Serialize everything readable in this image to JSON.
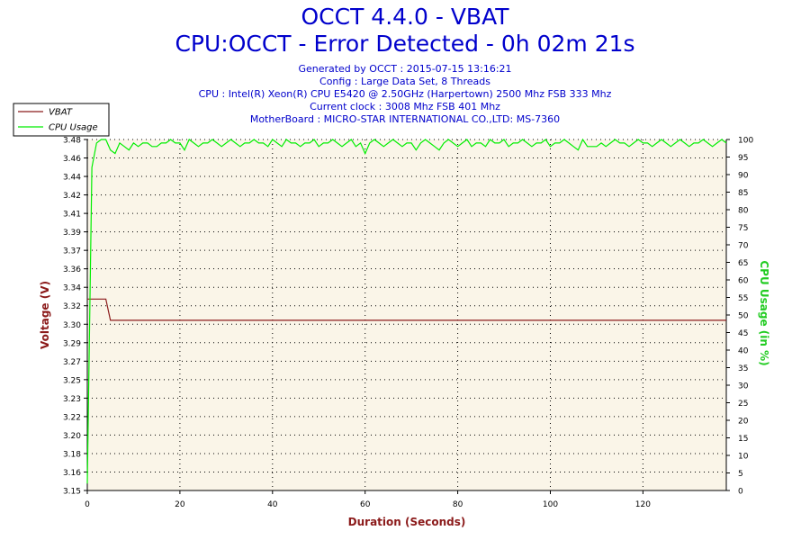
{
  "header": {
    "title": "OCCT 4.4.0 - VBAT",
    "subtitle": "CPU:OCCT - Error Detected - 0h 02m 21s",
    "info_lines": [
      "Generated by OCCT : 2015-07-15 13:16:21",
      "Config : Large Data Set, 8 Threads",
      "CPU : Intel(R) Xeon(R) CPU E5420 @ 2.50GHz (Harpertown) 2500 Mhz FSB 333 Mhz",
      "Current clock : 3008 Mhz FSB 401 Mhz",
      "MotherBoard : MICRO-STAR INTERNATIONAL CO.,LTD: MS-7360"
    ]
  },
  "chart_data": {
    "type": "line",
    "title": "OCCT 4.4.0 - VBAT",
    "xlabel": "Duration (Seconds)",
    "ylabel_left": "Voltage (V)",
    "ylabel_right": "CPU Usage (in %)",
    "xlim": [
      0,
      138
    ],
    "ylim_left": [
      3.15,
      3.48
    ],
    "ylim_right": [
      0,
      100
    ],
    "x_ticks": [
      0,
      20,
      40,
      60,
      80,
      100,
      120
    ],
    "y_left_ticks": [
      "3.15",
      "3.16",
      "3.18",
      "3.20",
      "3.22",
      "3.23",
      "3.25",
      "3.27",
      "3.29",
      "3.30",
      "3.32",
      "3.34",
      "3.36",
      "3.37",
      "3.39",
      "3.41",
      "3.42",
      "3.44",
      "3.46",
      "3.48"
    ],
    "y_right_ticks": [
      0,
      5,
      10,
      15,
      20,
      25,
      30,
      35,
      40,
      45,
      50,
      55,
      60,
      65,
      70,
      75,
      80,
      85,
      90,
      95,
      100
    ],
    "grid": true,
    "legend_position": "top-left",
    "colors": {
      "plot_bg": "#faf5e8",
      "vbat": "#8b1a1a",
      "cpu": "#00ee00",
      "axis_left_label": "#8b1a1a",
      "axis_right_label": "#22cc22",
      "x_label": "#8b1a1a"
    },
    "series": [
      {
        "name": "VBAT",
        "axis": "left",
        "x": [
          0,
          4,
          5,
          138
        ],
        "values": [
          3.33,
          3.33,
          3.31,
          3.31
        ]
      },
      {
        "name": "CPU Usage",
        "axis": "right",
        "x": [
          0,
          1,
          2,
          3,
          4,
          5,
          6,
          7,
          8,
          9,
          10,
          11,
          12,
          13,
          14,
          15,
          16,
          17,
          18,
          19,
          20,
          21,
          22,
          23,
          24,
          25,
          26,
          27,
          28,
          29,
          30,
          31,
          32,
          33,
          34,
          35,
          36,
          37,
          38,
          39,
          40,
          41,
          42,
          43,
          44,
          45,
          46,
          47,
          48,
          49,
          50,
          51,
          52,
          53,
          54,
          55,
          56,
          57,
          58,
          59,
          60,
          61,
          62,
          63,
          64,
          65,
          66,
          67,
          68,
          69,
          70,
          71,
          72,
          73,
          74,
          75,
          76,
          77,
          78,
          79,
          80,
          81,
          82,
          83,
          84,
          85,
          86,
          87,
          88,
          89,
          90,
          91,
          92,
          93,
          94,
          95,
          96,
          97,
          98,
          99,
          100,
          101,
          102,
          103,
          104,
          105,
          106,
          107,
          108,
          109,
          110,
          111,
          112,
          113,
          114,
          115,
          116,
          117,
          118,
          119,
          120,
          121,
          122,
          123,
          124,
          125,
          126,
          127,
          128,
          129,
          130,
          131,
          132,
          133,
          134,
          135,
          136,
          137,
          138
        ],
        "values": [
          2,
          92,
          99,
          100,
          100,
          97,
          96,
          99,
          98,
          97,
          99,
          98,
          99,
          99,
          98,
          98,
          99,
          99,
          100,
          99,
          99,
          97,
          100,
          99,
          98,
          99,
          99,
          100,
          99,
          98,
          99,
          100,
          99,
          98,
          99,
          99,
          100,
          99,
          99,
          98,
          100,
          99,
          98,
          100,
          99,
          99,
          98,
          99,
          99,
          100,
          98,
          99,
          99,
          100,
          99,
          98,
          99,
          100,
          98,
          99,
          96,
          99,
          100,
          99,
          98,
          99,
          100,
          99,
          98,
          99,
          99,
          97,
          99,
          100,
          99,
          98,
          97,
          99,
          100,
          99,
          98,
          99,
          100,
          98,
          99,
          99,
          98,
          100,
          99,
          99,
          100,
          98,
          99,
          99,
          100,
          99,
          98,
          99,
          99,
          100,
          98,
          99,
          99,
          100,
          99,
          98,
          97,
          100,
          98,
          98,
          98,
          99,
          98,
          99,
          100,
          99,
          99,
          98,
          99,
          100,
          99,
          99,
          98,
          99,
          100,
          99,
          98,
          99,
          100,
          99,
          98,
          99,
          99,
          100,
          99,
          98,
          99,
          100,
          99
        ]
      }
    ]
  }
}
